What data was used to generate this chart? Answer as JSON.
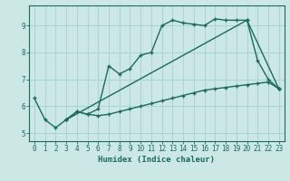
{
  "xlabel": "Humidex (Indice chaleur)",
  "bg_color": "#cce8e4",
  "grid_color": "#aad4d0",
  "line_color": "#1a6b5a",
  "xlim": [
    -0.5,
    23.5
  ],
  "ylim": [
    4.7,
    9.75
  ],
  "xticks": [
    0,
    1,
    2,
    3,
    4,
    5,
    6,
    7,
    8,
    9,
    10,
    11,
    12,
    13,
    14,
    15,
    16,
    17,
    18,
    19,
    20,
    21,
    22,
    23
  ],
  "yticks": [
    5,
    6,
    7,
    8,
    9
  ],
  "line1_x": [
    0,
    1,
    2,
    3,
    4,
    5,
    6,
    7,
    8,
    9,
    10,
    11,
    12,
    13,
    14,
    15,
    16,
    17,
    18,
    19,
    20,
    21,
    22,
    23
  ],
  "line1_y": [
    6.3,
    5.5,
    5.2,
    5.5,
    5.8,
    5.7,
    5.65,
    5.7,
    5.8,
    5.9,
    6.0,
    6.1,
    6.2,
    6.3,
    6.4,
    6.5,
    6.6,
    6.65,
    6.7,
    6.75,
    6.8,
    6.85,
    6.9,
    6.65
  ],
  "line2_x": [
    3,
    4,
    5,
    6,
    7,
    8,
    9,
    10,
    11,
    12,
    13,
    14,
    15,
    16,
    17,
    18,
    19,
    20,
    21,
    22,
    23
  ],
  "line2_y": [
    5.5,
    5.8,
    5.7,
    5.9,
    7.5,
    7.2,
    7.4,
    7.9,
    8.0,
    9.0,
    9.2,
    9.1,
    9.05,
    9.0,
    9.25,
    9.2,
    9.2,
    9.2,
    7.7,
    7.0,
    6.65
  ],
  "line3_x": [
    3,
    20,
    23
  ],
  "line3_y": [
    5.5,
    9.2,
    6.65
  ]
}
